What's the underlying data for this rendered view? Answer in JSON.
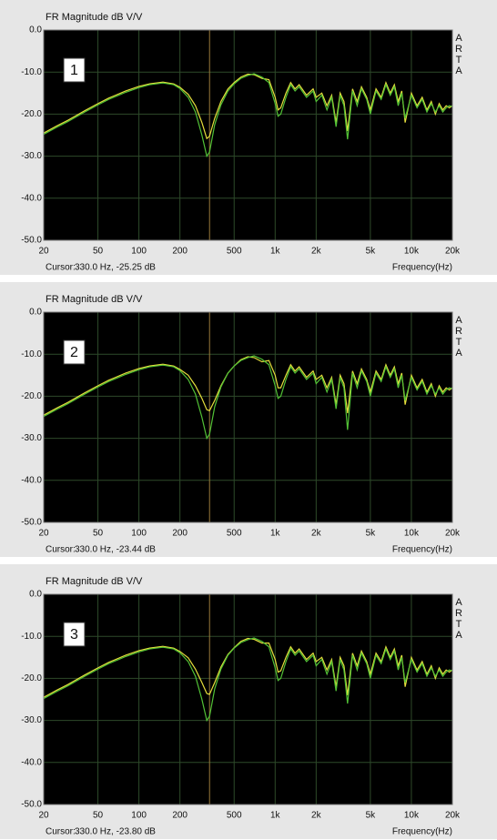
{
  "chart_data": [
    {
      "type": "line",
      "title": "FR Magnitude dB V/V",
      "side_label": "ARTA",
      "panel_label": "1",
      "x_label": "Frequency(Hz)",
      "cursor": {
        "label": "Cursor:",
        "text": "330.0 Hz, -25.25 dB",
        "x": 330
      },
      "log_x": true,
      "grid": true,
      "xlim": [
        20,
        20000
      ],
      "ylim": [
        -50,
        0
      ],
      "xticks": [
        20,
        50,
        100,
        200,
        500,
        {
          "value": 1000,
          "label": "1k"
        },
        {
          "value": 2000,
          "label": "2k"
        },
        {
          "value": 5000,
          "label": "5k"
        },
        {
          "value": 10000,
          "label": "10k"
        },
        {
          "value": 20000,
          "label": "20k"
        }
      ],
      "yticks": [
        {
          "value": 0,
          "label": "0.0"
        },
        {
          "value": -10,
          "label": "-10.0"
        },
        {
          "value": -20,
          "label": "-20.0"
        },
        {
          "value": -30,
          "label": "-30.0"
        },
        {
          "value": -40,
          "label": "-40.0"
        },
        {
          "value": -50,
          "label": "-50.0"
        }
      ],
      "x": [
        20,
        25,
        30,
        40,
        50,
        60,
        80,
        100,
        120,
        150,
        180,
        200,
        230,
        260,
        290,
        315,
        330,
        360,
        400,
        450,
        500,
        560,
        630,
        700,
        800,
        900,
        1000,
        1050,
        1100,
        1200,
        1300,
        1400,
        1500,
        1700,
        1900,
        2000,
        2200,
        2400,
        2600,
        2800,
        3000,
        3200,
        3400,
        3700,
        4000,
        4300,
        4700,
        5000,
        5500,
        6000,
        6500,
        7000,
        7500,
        8000,
        8500,
        9000,
        10000,
        11000,
        12000,
        13000,
        14000,
        15000,
        16000,
        17000,
        18000,
        19000,
        20000
      ],
      "series": [
        {
          "color": "#e6df3c",
          "values": [
            -24.5,
            -22.8,
            -21.5,
            -19.2,
            -17.5,
            -16.2,
            -14.5,
            -13.4,
            -12.8,
            -12.4,
            -12.8,
            -13.6,
            -15.3,
            -18,
            -22,
            -25.8,
            -25.25,
            -21,
            -17,
            -14,
            -12.5,
            -11.2,
            -10.5,
            -10.6,
            -11.5,
            -11.8,
            -16,
            -19,
            -18.5,
            -15,
            -12.5,
            -14,
            -13,
            -15.5,
            -14,
            -16,
            -15,
            -18,
            -15.5,
            -22,
            -15,
            -17,
            -24,
            -14,
            -17,
            -13.5,
            -16,
            -19,
            -14,
            -16,
            -12.5,
            -15,
            -13,
            -17,
            -14.5,
            -22,
            -15,
            -18,
            -16,
            -19,
            -17,
            -20,
            -17.5,
            -19,
            -18,
            -18.5,
            -18
          ]
        },
        {
          "color": "#52c236",
          "values": [
            -24.8,
            -23.1,
            -21.8,
            -19.5,
            -17.8,
            -16.5,
            -14.8,
            -13.7,
            -13,
            -12.6,
            -13,
            -13.9,
            -16,
            -19.5,
            -25,
            -30,
            -29,
            -22.5,
            -17.8,
            -14.5,
            -12.8,
            -11.5,
            -10.8,
            -10.4,
            -11.2,
            -12.5,
            -17.5,
            -20.5,
            -20,
            -16,
            -13,
            -14.5,
            -13.5,
            -16,
            -14.5,
            -17,
            -15.5,
            -19,
            -16,
            -23,
            -15.5,
            -18,
            -26,
            -14.5,
            -18,
            -14,
            -16.5,
            -20,
            -14.5,
            -16.5,
            -13,
            -15.5,
            -13.5,
            -18,
            -15,
            -21,
            -15.5,
            -18.5,
            -16.5,
            -19.5,
            -17.5,
            -19.5,
            -18,
            -19.5,
            -18.5,
            -18,
            -18.2
          ]
        }
      ]
    },
    {
      "type": "line",
      "title": "FR Magnitude dB V/V",
      "side_label": "ARTA",
      "panel_label": "2",
      "x_label": "Frequency(Hz)",
      "cursor": {
        "label": "Cursor:",
        "text": "330.0 Hz, -23.44 dB",
        "x": 330
      },
      "log_x": true,
      "grid": true,
      "xlim": [
        20,
        20000
      ],
      "ylim": [
        -50,
        0
      ],
      "xticks": [
        20,
        50,
        100,
        200,
        500,
        {
          "value": 1000,
          "label": "1k"
        },
        {
          "value": 2000,
          "label": "2k"
        },
        {
          "value": 5000,
          "label": "5k"
        },
        {
          "value": 10000,
          "label": "10k"
        },
        {
          "value": 20000,
          "label": "20k"
        }
      ],
      "yticks": [
        {
          "value": 0,
          "label": "0.0"
        },
        {
          "value": -10,
          "label": "-10.0"
        },
        {
          "value": -20,
          "label": "-20.0"
        },
        {
          "value": -30,
          "label": "-30.0"
        },
        {
          "value": -40,
          "label": "-40.0"
        },
        {
          "value": -50,
          "label": "-50.0"
        }
      ],
      "x": [
        20,
        25,
        30,
        40,
        50,
        60,
        80,
        100,
        120,
        150,
        180,
        200,
        230,
        260,
        290,
        315,
        330,
        360,
        400,
        450,
        500,
        560,
        630,
        700,
        800,
        900,
        1000,
        1050,
        1100,
        1200,
        1300,
        1400,
        1500,
        1700,
        1900,
        2000,
        2200,
        2400,
        2600,
        2800,
        3000,
        3200,
        3400,
        3700,
        4000,
        4300,
        4700,
        5000,
        5500,
        6000,
        6500,
        7000,
        7500,
        8000,
        8500,
        9000,
        10000,
        11000,
        12000,
        13000,
        14000,
        15000,
        16000,
        17000,
        18000,
        19000,
        20000
      ],
      "series": [
        {
          "color": "#e6df3c",
          "values": [
            -24.5,
            -22.8,
            -21.5,
            -19.2,
            -17.5,
            -16.2,
            -14.5,
            -13.4,
            -12.8,
            -12.4,
            -12.8,
            -13.6,
            -15,
            -17.5,
            -20.5,
            -23.2,
            -23.44,
            -21,
            -17.5,
            -14.5,
            -12.8,
            -11.3,
            -10.6,
            -10.8,
            -11.8,
            -11.5,
            -15,
            -18,
            -18,
            -15,
            -12.5,
            -14,
            -13,
            -15.5,
            -14,
            -16,
            -15,
            -18,
            -15.5,
            -22,
            -15,
            -17,
            -24,
            -14,
            -17,
            -13.5,
            -16,
            -19,
            -14,
            -16,
            -12.5,
            -15,
            -13,
            -17,
            -14.5,
            -22,
            -15,
            -18,
            -16,
            -19,
            -17,
            -20,
            -17.5,
            -19,
            -18,
            -18.5,
            -18
          ]
        },
        {
          "color": "#52c236",
          "values": [
            -24.8,
            -23.1,
            -21.8,
            -19.5,
            -17.8,
            -16.5,
            -14.8,
            -13.7,
            -13,
            -12.6,
            -13,
            -13.9,
            -16,
            -19.5,
            -25,
            -30,
            -29,
            -22.5,
            -17.8,
            -14.5,
            -12.8,
            -11.5,
            -10.8,
            -10.4,
            -11.2,
            -12.5,
            -17.5,
            -20.5,
            -20,
            -16,
            -13,
            -14.5,
            -13.5,
            -16,
            -14.5,
            -17,
            -15.5,
            -19,
            -16,
            -23,
            -15.5,
            -18,
            -28,
            -14.5,
            -18,
            -14,
            -16.5,
            -20,
            -14.5,
            -16.5,
            -13,
            -15.5,
            -13.5,
            -18,
            -15,
            -21,
            -15.5,
            -18.5,
            -16.5,
            -19.5,
            -17.5,
            -19.5,
            -18,
            -19.5,
            -18.5,
            -18,
            -18.2
          ]
        }
      ]
    },
    {
      "type": "line",
      "title": "FR Magnitude dB V/V",
      "side_label": "ARTA",
      "panel_label": "3",
      "x_label": "Frequency(Hz)",
      "cursor": {
        "label": "Cursor:",
        "text": "330.0 Hz, -23.80 dB",
        "x": 330
      },
      "log_x": true,
      "grid": true,
      "xlim": [
        20,
        20000
      ],
      "ylim": [
        -50,
        0
      ],
      "xticks": [
        20,
        50,
        100,
        200,
        500,
        {
          "value": 1000,
          "label": "1k"
        },
        {
          "value": 2000,
          "label": "2k"
        },
        {
          "value": 5000,
          "label": "5k"
        },
        {
          "value": 10000,
          "label": "10k"
        },
        {
          "value": 20000,
          "label": "20k"
        }
      ],
      "yticks": [
        {
          "value": 0,
          "label": "0.0"
        },
        {
          "value": -10,
          "label": "-10.0"
        },
        {
          "value": -20,
          "label": "-20.0"
        },
        {
          "value": -30,
          "label": "-30.0"
        },
        {
          "value": -40,
          "label": "-40.0"
        },
        {
          "value": -50,
          "label": "-50.0"
        }
      ],
      "x": [
        20,
        25,
        30,
        40,
        50,
        60,
        80,
        100,
        120,
        150,
        180,
        200,
        230,
        260,
        290,
        315,
        330,
        360,
        400,
        450,
        500,
        560,
        630,
        700,
        800,
        900,
        1000,
        1050,
        1100,
        1200,
        1300,
        1400,
        1500,
        1700,
        1900,
        2000,
        2200,
        2400,
        2600,
        2800,
        3000,
        3200,
        3400,
        3700,
        4000,
        4300,
        4700,
        5000,
        5500,
        6000,
        6500,
        7000,
        7500,
        8000,
        8500,
        9000,
        10000,
        11000,
        12000,
        13000,
        14000,
        15000,
        16000,
        17000,
        18000,
        19000,
        20000
      ],
      "series": [
        {
          "color": "#e6df3c",
          "values": [
            -24.5,
            -22.8,
            -21.5,
            -19.2,
            -17.5,
            -16.2,
            -14.5,
            -13.4,
            -12.8,
            -12.4,
            -12.8,
            -13.6,
            -15.1,
            -17.8,
            -21,
            -23.6,
            -23.8,
            -21,
            -17.3,
            -14.3,
            -12.7,
            -11.2,
            -10.5,
            -10.7,
            -11.6,
            -11.6,
            -15.5,
            -18.5,
            -18.2,
            -15,
            -12.5,
            -14,
            -13,
            -15.5,
            -14,
            -16,
            -15,
            -18,
            -15.5,
            -22,
            -15,
            -17,
            -24,
            -14,
            -17,
            -13.5,
            -16,
            -19,
            -14,
            -16,
            -12.5,
            -15,
            -13,
            -17,
            -14.5,
            -22,
            -15,
            -18,
            -16,
            -19,
            -17,
            -20,
            -17.5,
            -19,
            -18,
            -18.5,
            -18
          ]
        },
        {
          "color": "#52c236",
          "values": [
            -24.8,
            -23.1,
            -21.8,
            -19.5,
            -17.8,
            -16.5,
            -14.8,
            -13.7,
            -13,
            -12.6,
            -13,
            -13.9,
            -16,
            -19.5,
            -25,
            -30,
            -29,
            -22.5,
            -17.8,
            -14.5,
            -12.8,
            -11.5,
            -10.8,
            -10.4,
            -11.2,
            -12.5,
            -17.5,
            -20.5,
            -20,
            -16,
            -13,
            -14.5,
            -13.5,
            -16,
            -14.5,
            -17,
            -15.5,
            -19,
            -16,
            -23,
            -15.5,
            -18,
            -26,
            -14.5,
            -18,
            -14,
            -16.5,
            -20,
            -14.5,
            -16.5,
            -13,
            -15.5,
            -13.5,
            -18,
            -15,
            -21,
            -15.5,
            -18.5,
            -16.5,
            -19.5,
            -17.5,
            -19.5,
            -18,
            -19.5,
            -18.5,
            -18,
            -18.2
          ]
        }
      ]
    }
  ]
}
